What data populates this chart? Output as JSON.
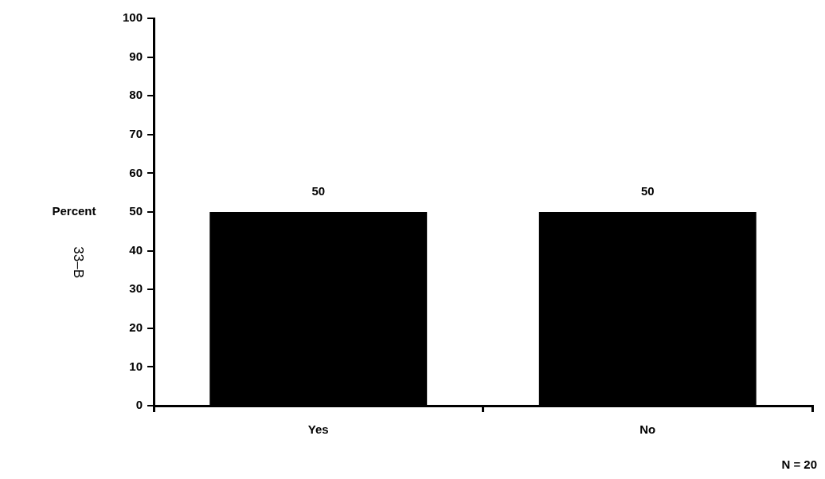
{
  "chart_data": {
    "type": "bar",
    "categories": [
      "Yes",
      "No"
    ],
    "values": [
      50,
      50
    ],
    "color": "#000000",
    "ylabel": "Percent",
    "ylim": [
      0,
      100
    ],
    "yticks": [
      0,
      10,
      20,
      30,
      40,
      50,
      60,
      70,
      80,
      90,
      100
    ],
    "grid": false,
    "legend": false,
    "data_labels": true,
    "annotations": [
      "33–B",
      "N = 20"
    ]
  }
}
